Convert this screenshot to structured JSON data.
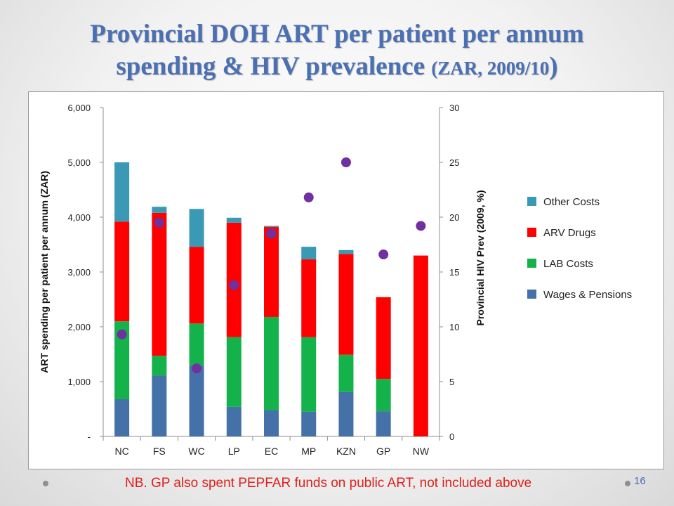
{
  "slide": {
    "title_line1": "Provincial DOH ART per patient per annum",
    "title_line2_main": "spending & HIV prevalence ",
    "title_line2_small": "(ZAR, 2009/10",
    "title_line2_end": ")",
    "footnote": "NB. GP also spent PEPFAR funds on public ART, not included above",
    "page_number": "16"
  },
  "chart_data": {
    "type": "bar",
    "stacked": true,
    "categories": [
      "NC",
      "FS",
      "WC",
      "LP",
      "EC",
      "MP",
      "KZN",
      "GP",
      "NW"
    ],
    "series": [
      {
        "name": "Wages & Pensions",
        "color": "#4472a8",
        "values": [
          680,
          1110,
          1290,
          540,
          480,
          450,
          810,
          460,
          0
        ]
      },
      {
        "name": "LAB Costs",
        "color": "#13b24b",
        "values": [
          1420,
          360,
          770,
          1270,
          1700,
          1360,
          680,
          590,
          0
        ]
      },
      {
        "name": "ARV Drugs",
        "color": "#ff0000",
        "values": [
          1820,
          2610,
          1400,
          2090,
          1640,
          1420,
          1840,
          1490,
          3300
        ]
      },
      {
        "name": "Other Costs",
        "color": "#3a9ab5",
        "values": [
          1080,
          110,
          690,
          90,
          20,
          230,
          70,
          0,
          0
        ]
      }
    ],
    "overlay": {
      "type": "scatter",
      "name": "Provincial HIV Prev (2009, %)",
      "color": "#7030a0",
      "axis": "right",
      "values": [
        9.3,
        19.5,
        6.2,
        13.8,
        18.5,
        21.8,
        25.0,
        16.6,
        19.2
      ]
    },
    "y_left": {
      "label": "ART spending per patient per annum (ZAR)",
      "ylim": [
        0,
        6000
      ],
      "ticks": [
        0,
        1000,
        2000,
        3000,
        4000,
        5000,
        6000
      ],
      "tick_labels": [
        "-",
        "1,000",
        "2,000",
        "3,000",
        "4,000",
        "5,000",
        "6,000"
      ]
    },
    "y_right": {
      "label": "Provincial HIV Prev (2009, %)",
      "ylim": [
        0,
        30
      ],
      "ticks": [
        0,
        5,
        10,
        15,
        20,
        25,
        30
      ],
      "tick_labels": [
        "0",
        "5",
        "10",
        "15",
        "20",
        "25",
        "30"
      ]
    },
    "legend_order": [
      "Other Costs",
      "ARV Drugs",
      "LAB Costs",
      "Wages & Pensions"
    ],
    "legend_position": "right",
    "grid": false
  }
}
